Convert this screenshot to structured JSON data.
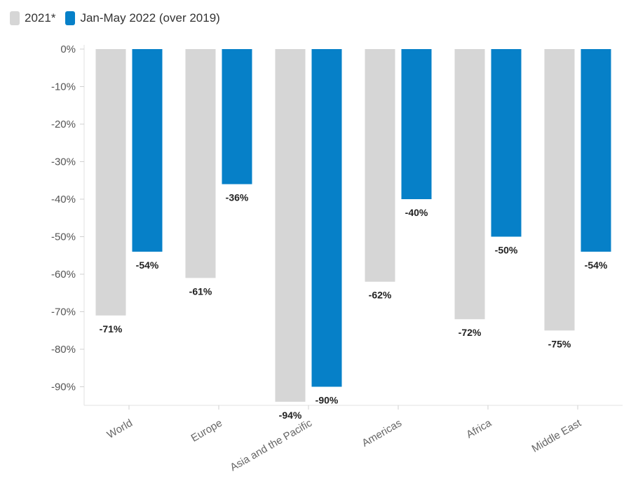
{
  "legend": [
    {
      "label": "2021*",
      "color": "#d6d6d6"
    },
    {
      "label": "Jan-May 2022 (over 2019)",
      "color": "#0680c8"
    }
  ],
  "chart_data": {
    "type": "bar",
    "title": "",
    "xlabel": "",
    "ylabel": "",
    "categories": [
      "World",
      "Europe",
      "Asia and the Pacific",
      "Americas",
      "Africa",
      "Middle East"
    ],
    "series": [
      {
        "name": "2021*",
        "values": [
          -71,
          -61,
          -94,
          -62,
          -72,
          -75
        ],
        "labels": [
          "-71%",
          "-61%",
          "-94%",
          "-62%",
          "-72%",
          "-75%"
        ],
        "color": "#d6d6d6"
      },
      {
        "name": "Jan-May 2022 (over 2019)",
        "values": [
          -54,
          -36,
          -90,
          -40,
          -50,
          -54
        ],
        "labels": [
          "-54%",
          "-36%",
          "-90%",
          "-40%",
          "-50%",
          "-54%"
        ],
        "color": "#0680c8"
      }
    ],
    "ylim": [
      -95,
      0
    ],
    "yticks": [
      0,
      -10,
      -20,
      -30,
      -40,
      -50,
      -60,
      -70,
      -80,
      -90
    ],
    "ytick_labels": [
      "0%",
      "-10%",
      "-20%",
      "-30%",
      "-40%",
      "-50%",
      "-60%",
      "-70%",
      "-80%",
      "-90%"
    ],
    "grid": false,
    "legend_position": "top-left"
  }
}
